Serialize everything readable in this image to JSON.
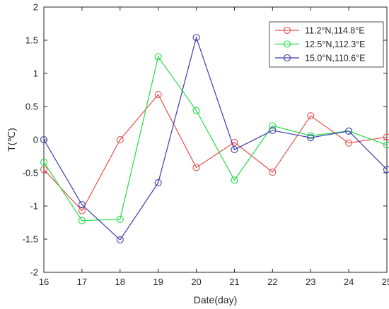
{
  "chart_data": {
    "type": "line",
    "title": "",
    "xlabel": "Date(day)",
    "ylabel": "T(℃)",
    "x": [
      16,
      17,
      18,
      19,
      20,
      21,
      22,
      23,
      24,
      25
    ],
    "xlim": [
      16,
      25
    ],
    "ylim": [
      -2,
      2
    ],
    "x_ticks": [
      "16",
      "17",
      "18",
      "19",
      "20",
      "21",
      "22",
      "23",
      "24",
      "25"
    ],
    "y_ticks": [
      "-2",
      "-1.5",
      "-1",
      "-0.5",
      "0",
      "0.5",
      "1",
      "1.5",
      "2"
    ],
    "grid": false,
    "legend_position": "top-right",
    "marker": "open-circle",
    "series": [
      {
        "name": "11.2°N,114.8°E",
        "color": "#e8514f",
        "values": [
          -0.45,
          -1.07,
          0.0,
          0.68,
          -0.42,
          -0.04,
          -0.49,
          0.36,
          -0.05,
          0.04
        ]
      },
      {
        "name": "12.5°N,112.3°E",
        "color": "#22dd44",
        "values": [
          -0.34,
          -1.22,
          -1.2,
          1.25,
          0.44,
          -0.61,
          0.21,
          0.06,
          0.13,
          -0.08
        ]
      },
      {
        "name": "15.0°N,110.6°E",
        "color": "#3d3bb0",
        "values": [
          0.0,
          -0.98,
          -1.51,
          -0.65,
          1.54,
          -0.15,
          0.14,
          0.03,
          0.13,
          -0.45
        ]
      }
    ]
  }
}
